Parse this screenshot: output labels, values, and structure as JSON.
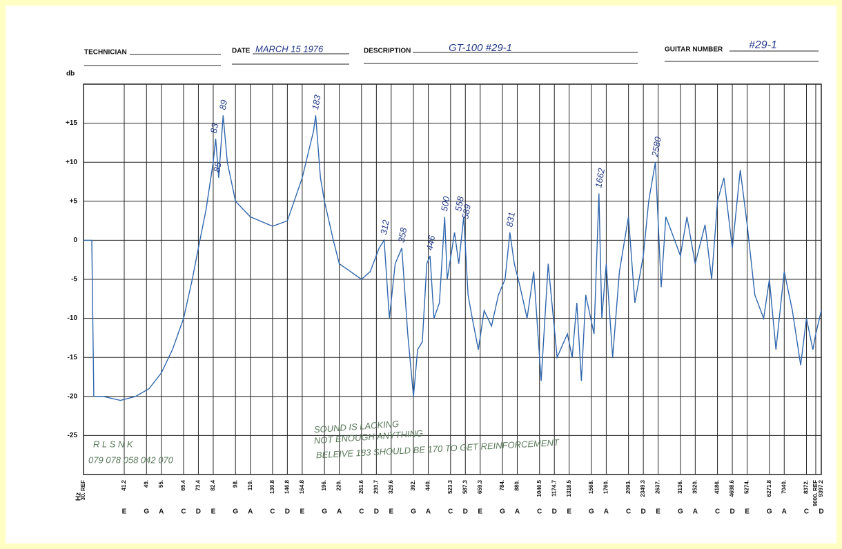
{
  "header": {
    "technician_label": "TECHNICIAN",
    "date_label": "DATE",
    "date": "MARCH 15 1976",
    "description_label": "DESCRIPTION",
    "description": "GT-100 #29-1",
    "guitar_number_label": "GUITAR NUMBER",
    "guitar_number": "#29-1"
  },
  "chart_data": {
    "type": "line",
    "ylabel": "db",
    "xlabel": "Hz",
    "xscale": "log",
    "grid": true,
    "xlim": [
      30,
      9397.2
    ],
    "ylim": [
      -30,
      20
    ],
    "yticks": [
      {
        "value": 15,
        "label": "+15"
      },
      {
        "value": 10,
        "label": "+10"
      },
      {
        "value": 5,
        "label": "+5"
      },
      0,
      -5,
      -10,
      -15,
      -20,
      -25
    ],
    "xticks": [
      {
        "value": 30,
        "label": "30. REF"
      },
      41.2,
      {
        "value": 49,
        "label": "49."
      },
      {
        "value": 55,
        "label": "55."
      },
      65.4,
      73.4,
      82.4,
      {
        "value": 98,
        "label": "98."
      },
      {
        "value": 110,
        "label": "110."
      },
      130.8,
      146.8,
      164.8,
      {
        "value": 196,
        "label": "196."
      },
      {
        "value": 220,
        "label": "220."
      },
      261.6,
      293.7,
      329.6,
      {
        "value": 392,
        "label": "392."
      },
      {
        "value": 440,
        "label": "440."
      },
      523.3,
      587.3,
      659.3,
      {
        "value": 784,
        "label": "784."
      },
      {
        "value": 880,
        "label": "880."
      },
      1046.5,
      1174.7,
      1318.5,
      {
        "value": 1568,
        "label": "1568."
      },
      {
        "value": 1760,
        "label": "1760."
      },
      {
        "value": 2093,
        "label": "2093."
      },
      2349.3,
      {
        "value": 2637,
        "label": "2637."
      },
      {
        "value": 3136,
        "label": "3136."
      },
      {
        "value": 3520,
        "label": "3520."
      },
      {
        "value": 4186,
        "label": "4186."
      },
      4698.6,
      {
        "value": 5274,
        "label": "5274."
      },
      6271.8,
      {
        "value": 7040,
        "label": "7040."
      },
      {
        "value": 8372,
        "label": "8372."
      },
      {
        "value": 9000,
        "label": "9000. REF"
      },
      9397.2
    ],
    "x_notes": [
      null,
      "E",
      "G",
      "A",
      "C",
      "D",
      "E",
      "G",
      "A",
      "C",
      "D",
      "E",
      "G",
      "A",
      "C",
      "D",
      "E",
      "G",
      "A",
      "C",
      "D",
      "E",
      "G",
      "A",
      "C",
      "D",
      "E",
      "G",
      "A",
      "C",
      "D",
      "E",
      "G",
      "A",
      "C",
      "D",
      "E",
      "G",
      "A",
      "C",
      null,
      "D"
    ],
    "series": [
      {
        "color": "#2f66ad",
        "x": [
          30,
          32,
          32.5,
          35,
          40,
          45,
          50,
          55,
          60,
          65.4,
          70,
          73.4,
          78,
          82.4,
          84,
          86,
          89,
          92,
          98,
          110,
          130.8,
          146.8,
          164.8,
          180,
          183,
          190,
          196,
          210,
          220,
          240,
          261.6,
          280,
          300,
          312,
          325,
          340,
          358,
          375,
          392,
          405,
          420,
          435,
          446,
          460,
          480,
          500,
          510,
          540,
          558,
          580,
          600,
          620,
          650,
          680,
          720,
          760,
          800,
          831,
          860,
          900,
          950,
          1000,
          1060,
          1120,
          1200,
          1300,
          1350,
          1400,
          1450,
          1500,
          1600,
          1662,
          1700,
          1760,
          1850,
          1950,
          2093,
          2200,
          2349,
          2450,
          2580,
          2700,
          2800,
          3000,
          3136,
          3300,
          3520,
          3800,
          4000,
          4186,
          4400,
          4698.6,
          5000,
          5274,
          5600,
          6000,
          6271.8,
          6600,
          7040,
          7500,
          8000,
          8372,
          8800,
          9000,
          9397.2
        ],
        "values": [
          0,
          0,
          -20,
          -20,
          -20.5,
          -20,
          -19,
          -17,
          -14,
          -10,
          -5,
          -1,
          4,
          10,
          13,
          8,
          16,
          10,
          5,
          3,
          1.8,
          2.5,
          8,
          14,
          16,
          8,
          5,
          0,
          -3,
          -4,
          -5,
          -4,
          -1,
          0,
          -10,
          -3,
          -1,
          -12,
          -20,
          -14,
          -13,
          -3,
          -2,
          -10,
          -8,
          3,
          -5,
          1,
          -3,
          3,
          -7,
          -10,
          -14,
          -9,
          -11,
          -7,
          -5,
          1,
          -3,
          -6,
          -10,
          -4,
          -18,
          -3,
          -15,
          -12,
          -15,
          -8,
          -18,
          -7,
          -12,
          6,
          -10,
          -3,
          -15,
          -4,
          3,
          -8,
          -2,
          5,
          10,
          -6,
          3,
          0,
          -2,
          3,
          -3,
          2,
          -5,
          5,
          8,
          -1,
          9,
          2,
          -7,
          -10,
          -5,
          -14,
          -4,
          -9,
          -16,
          -10,
          -14,
          -12,
          -9
        ]
      }
    ],
    "peaks": [
      {
        "x": 83,
        "y": 13
      },
      {
        "x": 89,
        "y": 16
      },
      {
        "x": 85,
        "y": 8
      },
      {
        "x": 183,
        "y": 16
      },
      {
        "x": 312,
        "y": 0
      },
      {
        "x": 358,
        "y": -1
      },
      {
        "x": 446,
        "y": -2
      },
      {
        "x": 500,
        "y": 3
      },
      {
        "x": 558,
        "y": 3
      },
      {
        "x": 589,
        "y": 2
      },
      {
        "x": 831,
        "y": 1
      },
      {
        "x": 1662,
        "y": 6
      },
      {
        "x": 2580,
        "y": 10
      }
    ],
    "annotations": [
      "R   L   S   N    K",
      "079 078 058 042   070",
      "SOUND IS LACKING",
      "NOT ENOUGH ANYTHING",
      "BELEIVE 183 SHOULD BE 170 TO GET REINFORCEMENT"
    ]
  }
}
